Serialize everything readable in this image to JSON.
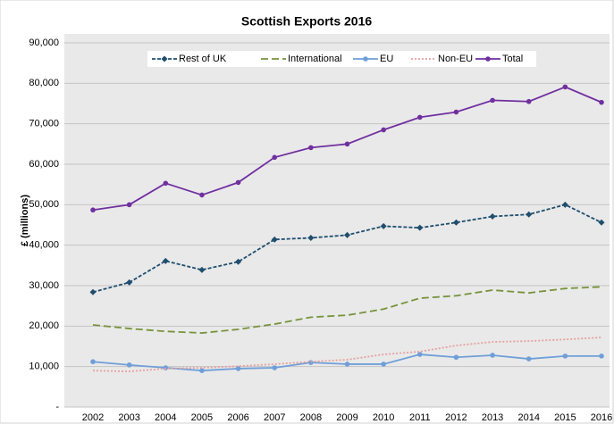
{
  "chart_data": {
    "type": "line",
    "title": "Scottish Exports 2016",
    "y_label": "£ (millions)",
    "categories": [
      "2002",
      "2003",
      "2004",
      "2005",
      "2006",
      "2007",
      "2008",
      "2009",
      "2010",
      "2011",
      "2012",
      "2013",
      "2014",
      "2015",
      "2016"
    ],
    "series": [
      {
        "name": "Rest of UK",
        "color": "#1f4e6e",
        "line_style": "dashed",
        "marker": "diamond",
        "values": [
          28400,
          30800,
          36100,
          33900,
          35900,
          41400,
          41800,
          42500,
          44700,
          44300,
          45600,
          47100,
          47600,
          50000,
          45600
        ]
      },
      {
        "name": "International",
        "color": "#77933c",
        "line_style": "long-dash",
        "values": [
          20300,
          19400,
          18700,
          18300,
          19200,
          20500,
          22200,
          22700,
          24200,
          26900,
          27500,
          28900,
          28200,
          29300,
          29700
        ]
      },
      {
        "name": "EU",
        "color": "#6f9fd8",
        "line_style": "solid",
        "marker": "circle",
        "values": [
          11200,
          10400,
          9700,
          9000,
          9500,
          9700,
          11000,
          10600,
          10600,
          13000,
          12300,
          12800,
          11900,
          12600,
          12600
        ]
      },
      {
        "name": "Non-EU",
        "color": "#e6a0a0",
        "line_style": "dotted",
        "values": [
          9000,
          8800,
          9500,
          9700,
          10100,
          10600,
          11200,
          11700,
          13000,
          13700,
          15200,
          16100,
          16300,
          16700,
          17200
        ]
      },
      {
        "name": "Total",
        "color": "#7030a0",
        "line_style": "solid",
        "marker": "circle",
        "values": [
          48700,
          50000,
          55300,
          52400,
          55500,
          61700,
          64100,
          65000,
          68500,
          71600,
          72900,
          75800,
          75500,
          79100,
          75300
        ]
      }
    ],
    "ylim": [
      0,
      90000
    ],
    "yticks": [
      {
        "value": 0,
        "label": "-"
      },
      {
        "value": 10000,
        "label": "10,000"
      },
      {
        "value": 20000,
        "label": "20,000"
      },
      {
        "value": 30000,
        "label": "30,000"
      },
      {
        "value": 40000,
        "label": "40,000"
      },
      {
        "value": 50000,
        "label": "50,000"
      },
      {
        "value": 60000,
        "label": "60,000"
      },
      {
        "value": 70000,
        "label": "70,000"
      },
      {
        "value": 80000,
        "label": "80,000"
      },
      {
        "value": 90000,
        "label": "90,000"
      }
    ],
    "grid": true,
    "legend": "top"
  }
}
